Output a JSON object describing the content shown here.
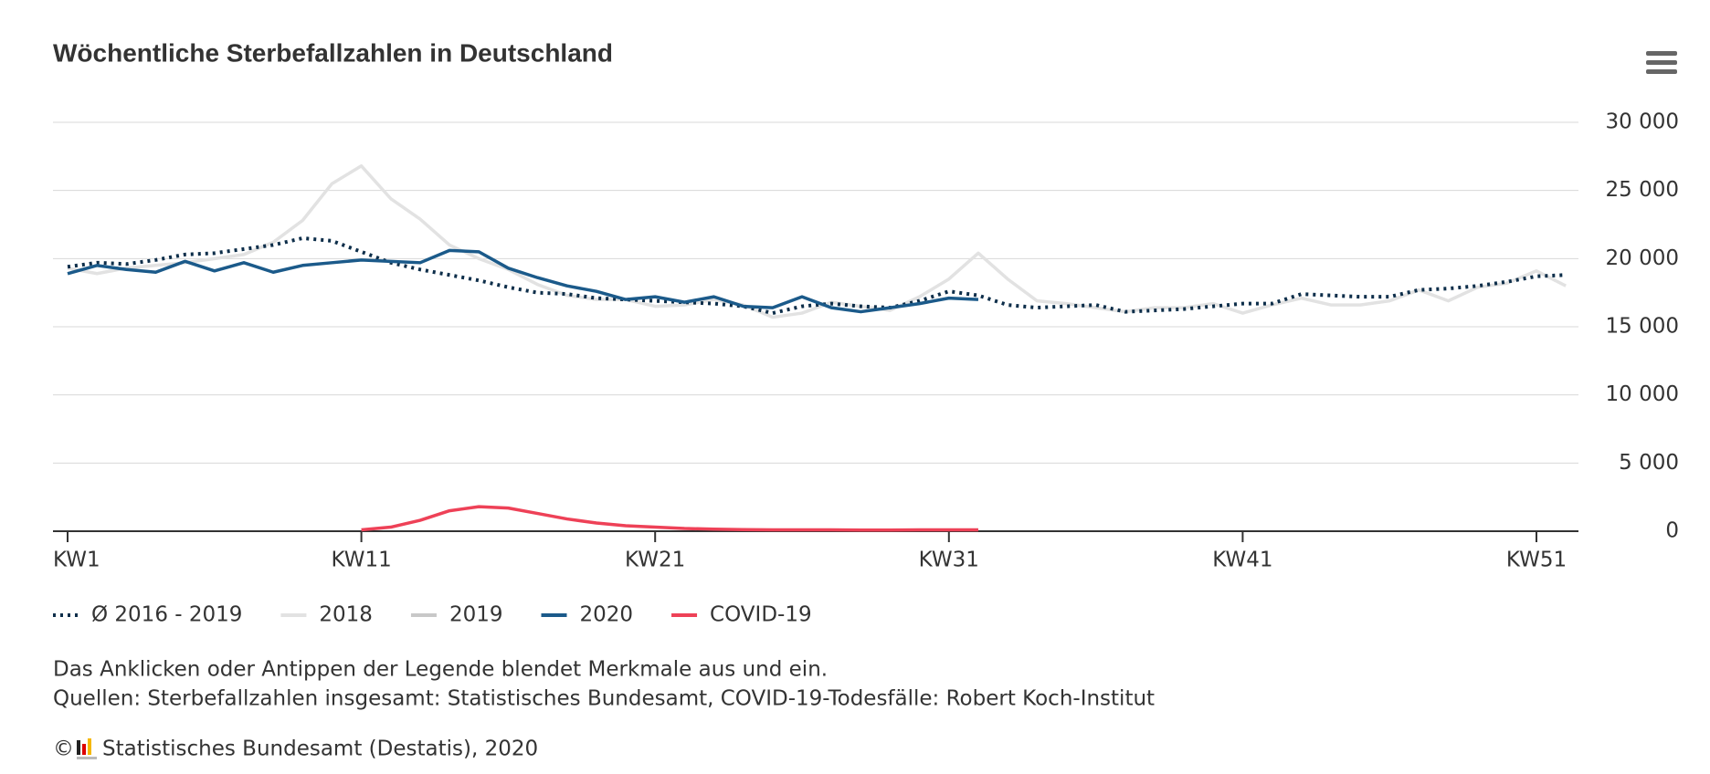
{
  "chart_data": {
    "type": "line",
    "title": "Wöchentliche Sterbefallzahlen in Deutschland",
    "categories": [
      "KW1",
      null,
      null,
      null,
      null,
      null,
      null,
      null,
      null,
      null,
      "KW11",
      null,
      null,
      null,
      null,
      null,
      null,
      null,
      null,
      null,
      "KW21",
      null,
      null,
      null,
      null,
      null,
      null,
      null,
      null,
      null,
      "KW31",
      null,
      null,
      null,
      null,
      null,
      null,
      null,
      null,
      null,
      "KW41",
      null,
      null,
      null,
      null,
      null,
      null,
      null,
      null,
      null,
      "KW51",
      null
    ],
    "series": [
      {
        "name": "Ø 2016 - 2019",
        "color": "#0d2e4a",
        "dashed": true,
        "values": [
          19400,
          19700,
          19600,
          19900,
          20300,
          20400,
          20700,
          21000,
          21500,
          21300,
          20500,
          19700,
          19200,
          18800,
          18400,
          17900,
          17500,
          17400,
          17100,
          17000,
          16900,
          16800,
          16700,
          16500,
          16000,
          16500,
          16700,
          16500,
          16400,
          16900,
          17600,
          17300,
          16600,
          16400,
          16500,
          16600,
          16100,
          16200,
          16300,
          16500,
          16700,
          16700,
          17400,
          17300,
          17200,
          17200,
          17700,
          17800,
          18000,
          18300,
          18700,
          18800
        ]
      },
      {
        "name": "2018",
        "color": "#e2e2e2",
        "values": [
          19300,
          18900,
          19300,
          19500,
          19700,
          20000,
          20300,
          21200,
          22800,
          25500,
          26800,
          24400,
          22900,
          21000,
          20000,
          19200,
          18100,
          17300,
          17000,
          17000,
          16500,
          16600,
          17000,
          16600,
          15700,
          16000,
          16800,
          16500,
          16200,
          17200,
          18500,
          20400,
          18500,
          16900,
          16700,
          16400,
          16100,
          16400,
          16400,
          16700,
          16000,
          16600,
          17100,
          16600,
          16600,
          16900,
          17700,
          16900,
          17900,
          18200,
          19100,
          18000
        ]
      },
      {
        "name": "2019",
        "color": "#c8c8c8",
        "hidden": true
      },
      {
        "name": "2020",
        "color": "#1b5a8a",
        "values": [
          18900,
          19500,
          19200,
          19000,
          19800,
          19100,
          19700,
          19000,
          19500,
          19700,
          19900,
          19800,
          19700,
          20600,
          20500,
          19300,
          18600,
          18000,
          17600,
          17000,
          17200,
          16800,
          17200,
          16500,
          16400,
          17200,
          16400,
          16100,
          16400,
          16700,
          17100,
          17000,
          null,
          null,
          null,
          null,
          null,
          null,
          null,
          null,
          null,
          null,
          null,
          null,
          null,
          null,
          null,
          null,
          null,
          null,
          null,
          null
        ]
      },
      {
        "name": "COVID-19",
        "color": "#ee4157",
        "values": [
          null,
          null,
          null,
          null,
          null,
          null,
          null,
          null,
          null,
          null,
          100,
          300,
          800,
          1500,
          1800,
          1700,
          1300,
          900,
          600,
          400,
          300,
          200,
          150,
          120,
          100,
          100,
          100,
          80,
          80,
          100,
          100,
          100,
          null,
          null,
          null,
          null,
          null,
          null,
          null,
          null,
          null,
          null,
          null,
          null,
          null,
          null,
          null,
          null,
          null,
          null,
          null,
          null
        ]
      }
    ],
    "ylim": [
      0,
      30000
    ],
    "yticks": [
      0,
      {
        "value": 5000,
        "label": "5 000"
      },
      {
        "value": 10000,
        "label": "10 000"
      },
      {
        "value": 15000,
        "label": "15 000"
      },
      {
        "value": 20000,
        "label": "20 000"
      },
      {
        "value": 25000,
        "label": "25 000"
      },
      {
        "value": 30000,
        "label": "30 000"
      }
    ],
    "grid": true,
    "notes": [
      "Das Anklicken oder Antippen der Legende blendet Merkmale aus und ein.",
      "Quellen: Sterbefallzahlen insgesamt: Statistisches Bundesamt, COVID-19-Todesfälle: Robert Koch-Institut"
    ],
    "copyright": "©",
    "credit": "Statistisches Bundesamt (Destatis), 2020"
  }
}
